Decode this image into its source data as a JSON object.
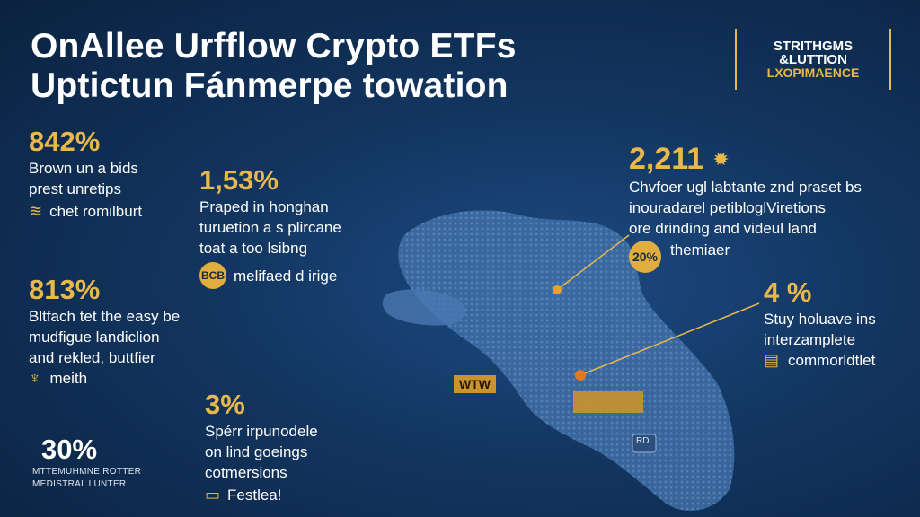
{
  "header": {
    "title_line1": "OnAllee Urfflow Crypto ETFs",
    "title_line2": "Uptictun Fánmerpe towation"
  },
  "logo": {
    "line1": "STRITHGMS",
    "line2": "&LUTTION",
    "line3": "LXOPIMAENCE"
  },
  "stats": [
    {
      "value": "842%",
      "lines": [
        "Brown un a bids",
        "prest unretips"
      ],
      "icon_text": "chet romilburt"
    },
    {
      "value": "1,53%",
      "lines": [
        "Praped in honghan",
        "turuetion a s plircane",
        "toat a too lsibng"
      ],
      "coin": "BCB",
      "icon_text": "melifaed d irige"
    },
    {
      "value": "813%",
      "lines": [
        "Bltfach tet the easy be",
        "mudfigue landiclion",
        "and rekled, buttfier"
      ],
      "icon_text": "meith"
    },
    {
      "value": "3%",
      "lines": [
        "Spérr irpunodele",
        "on lind goeings",
        "cotmersions"
      ],
      "icon_text": "Festlea!"
    },
    {
      "value": "30%",
      "lines": [
        "MTTEMUHMNE ROTTER",
        "MEDISTRAL LUNTER"
      ]
    },
    {
      "value": "2,211",
      "lines": [
        "Chvfoer ugl labtante znd praset bs",
        "inouradarel petibloglViretions",
        "ore drinding and videul land"
      ],
      "icon_text": "themiaer",
      "coin": "20%"
    },
    {
      "value": "4 %",
      "lines": [
        "Stuy holuave ins",
        "interzamplete"
      ],
      "icon_text": "commorldtlet"
    }
  ],
  "map_labels": {
    "marker1": "WTW",
    "marker3": "RD"
  },
  "colors": {
    "accent": "#e8b84a",
    "background": "#0f2d52"
  }
}
